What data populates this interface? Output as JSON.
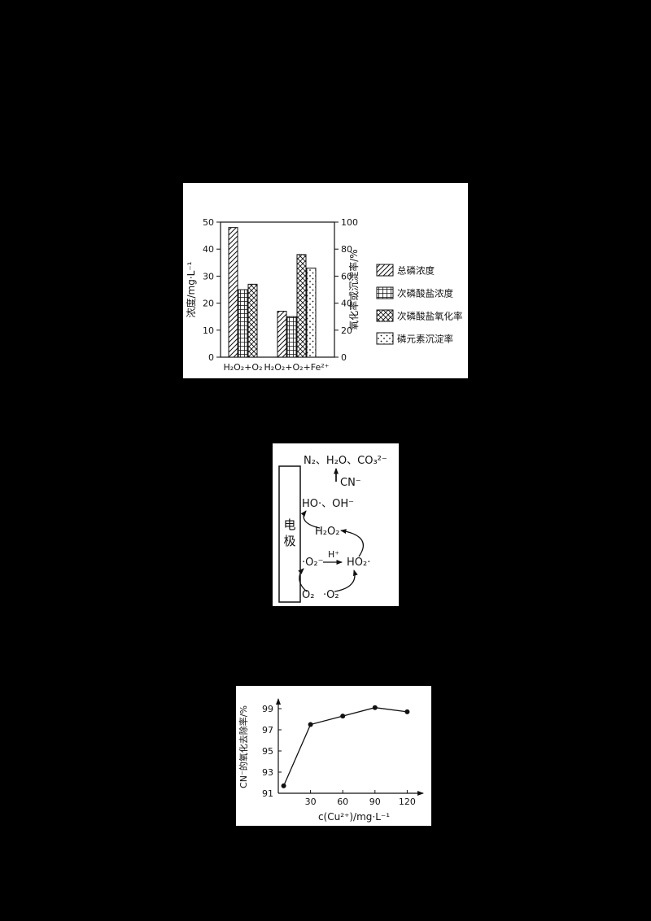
{
  "colors": {
    "page_bg": "#000000",
    "panel_bg": "#ffffff",
    "ink": "#111111"
  },
  "chart_data": [
    {
      "type": "bar",
      "categories": [
        "H₂O₂+O₂",
        "H₂O₂+O₂+Fe²⁺"
      ],
      "left_axis": {
        "label": "浓度/mg·L⁻¹",
        "ticks": [
          0,
          10,
          20,
          30,
          40,
          50
        ],
        "max": 50,
        "unit": "mg·L⁻¹"
      },
      "right_axis": {
        "label": "氧化率或沉淀率/%",
        "ticks": [
          0,
          20,
          40,
          60,
          80,
          100
        ],
        "max": 100,
        "unit": "%"
      },
      "series": [
        {
          "name": "总磷浓度",
          "axis": "left",
          "pattern": "diag",
          "values": [
            48,
            17
          ]
        },
        {
          "name": "次磷酸盐浓度",
          "axis": "left",
          "pattern": "grid",
          "values": [
            25,
            15
          ]
        },
        {
          "name": "次磷酸盐氧化率",
          "axis": "right",
          "pattern": "cross",
          "values": [
            54,
            76
          ]
        },
        {
          "name": "磷元素沉淀率",
          "axis": "right",
          "pattern": "dots",
          "values": [
            null,
            66
          ]
        }
      ],
      "legend_position": "right",
      "grid": false
    },
    {
      "type": "line",
      "x": [
        5,
        30,
        60,
        90,
        120
      ],
      "y": [
        91.7,
        97.5,
        98.3,
        99.1,
        98.7
      ],
      "x_ticks": [
        30,
        60,
        90,
        120
      ],
      "y_ticks": [
        91,
        93,
        95,
        97,
        99
      ],
      "xlabel": "c(Cu²⁺)/mg·L⁻¹",
      "ylabel": "CN⁻的氧化去除率/%",
      "xlim": [
        0,
        135
      ],
      "ylim": [
        91,
        100
      ],
      "marker": "circle",
      "grid": false
    }
  ],
  "figure2": {
    "electrode_label": "电极",
    "products": "N₂、H₂O、CO₃²⁻",
    "cn": "CN⁻",
    "radicals": "HO·、OH⁻",
    "h2o2": "H₂O₂",
    "superoxide": "·O₂⁻",
    "h_plus": "H⁺",
    "ho2": "HO₂·",
    "o2": "O₂",
    "o2_dot": "·O₂"
  }
}
